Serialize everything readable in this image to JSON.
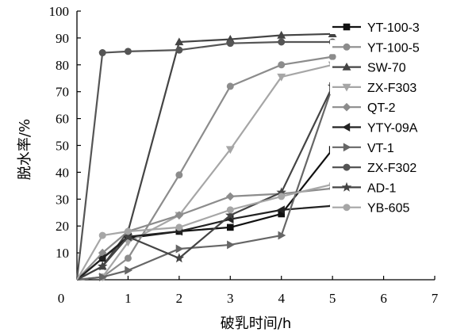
{
  "chart_data": {
    "type": "line",
    "xlabel": "破乳时间/h",
    "ylabel": "脱水率/%",
    "xlim": [
      0,
      7
    ],
    "ylim": [
      0,
      100
    ],
    "xticks": [
      0,
      1,
      2,
      3,
      4,
      5,
      6,
      7
    ],
    "yticks": [
      10,
      20,
      30,
      40,
      50,
      60,
      70,
      80,
      90,
      100
    ],
    "grid": false,
    "legend_position": "right",
    "series": [
      {
        "name": "YT-100-3",
        "marker": "square",
        "color": "#111111",
        "points": [
          [
            0,
            0
          ],
          [
            0.5,
            8
          ],
          [
            1,
            15.5
          ],
          [
            2,
            18
          ],
          [
            3,
            19.5
          ],
          [
            4,
            24.5
          ],
          [
            5,
            48.5
          ]
        ]
      },
      {
        "name": "YT-100-5",
        "marker": "circle",
        "color": "#8c8c8c",
        "points": [
          [
            0,
            0
          ],
          [
            0.5,
            1
          ],
          [
            1,
            8
          ],
          [
            2,
            39
          ],
          [
            3,
            72
          ],
          [
            4,
            80
          ],
          [
            5,
            83
          ]
        ]
      },
      {
        "name": "SW-70",
        "marker": "triangle-up",
        "color": "#444444",
        "points": [
          [
            0,
            0
          ],
          [
            0.5,
            5
          ],
          [
            1,
            18
          ],
          [
            2,
            88.5
          ],
          [
            3,
            89.5
          ],
          [
            4,
            91
          ],
          [
            5,
            91.5
          ]
        ]
      },
      {
        "name": "ZX-F303",
        "marker": "triangle-down",
        "color": "#a6a6a6",
        "points": [
          [
            0,
            0
          ],
          [
            0.5,
            1
          ],
          [
            1,
            14
          ],
          [
            2,
            24
          ],
          [
            3,
            48.5
          ],
          [
            4,
            75.5
          ],
          [
            5,
            80
          ]
        ]
      },
      {
        "name": "QT-2",
        "marker": "diamond",
        "color": "#8c8c8c",
        "points": [
          [
            0,
            0
          ],
          [
            0.5,
            10
          ],
          [
            1,
            18
          ],
          [
            2,
            24
          ],
          [
            3,
            31
          ],
          [
            4,
            32
          ],
          [
            5,
            34
          ]
        ]
      },
      {
        "name": "YTY-09A",
        "marker": "triangle-left",
        "color": "#222222",
        "points": [
          [
            0,
            0
          ],
          [
            0.5,
            8
          ],
          [
            1,
            16
          ],
          [
            2,
            18
          ],
          [
            3,
            22.5
          ],
          [
            4,
            26
          ],
          [
            5,
            27.5
          ]
        ]
      },
      {
        "name": "VT-1",
        "marker": "triangle-right",
        "color": "#666666",
        "points": [
          [
            0,
            0
          ],
          [
            0.5,
            1
          ],
          [
            1,
            3.5
          ],
          [
            2,
            11.5
          ],
          [
            3,
            13
          ],
          [
            4,
            16.5
          ],
          [
            5,
            72
          ]
        ]
      },
      {
        "name": "ZX-F302",
        "marker": "circle",
        "color": "#555555",
        "points": [
          [
            0,
            0
          ],
          [
            0.5,
            84.5
          ],
          [
            1,
            85
          ],
          [
            2,
            85.5
          ],
          [
            3,
            88
          ],
          [
            4,
            88.5
          ],
          [
            5,
            88.5
          ]
        ]
      },
      {
        "name": "AD-1",
        "marker": "star",
        "color": "#444444",
        "points": [
          [
            0,
            0
          ],
          [
            0.5,
            5
          ],
          [
            1,
            16
          ],
          [
            2,
            8
          ],
          [
            3,
            24
          ],
          [
            4,
            32.5
          ],
          [
            5,
            72
          ]
        ]
      },
      {
        "name": "YB-605",
        "marker": "circle",
        "color": "#a6a6a6",
        "points": [
          [
            0,
            0
          ],
          [
            0.5,
            16.5
          ],
          [
            1,
            18
          ],
          [
            2,
            19.5
          ],
          [
            3,
            26
          ],
          [
            4,
            31
          ],
          [
            5,
            35.5
          ]
        ]
      }
    ]
  }
}
